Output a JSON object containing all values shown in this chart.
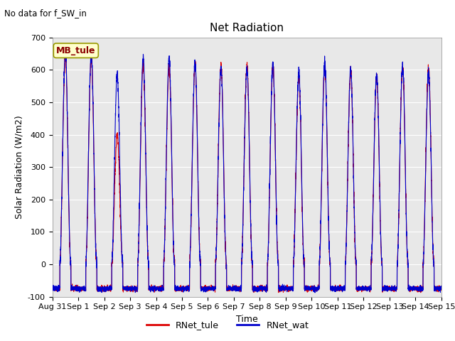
{
  "title": "Net Radiation",
  "top_left_text": "No data for f_SW_in",
  "ylabel": "Solar Radiation (W/m2)",
  "xlabel": "Time",
  "annotation_box": "MB_tule",
  "ylim": [
    -100,
    700
  ],
  "yticks": [
    -100,
    0,
    100,
    200,
    300,
    400,
    500,
    600,
    700
  ],
  "xtick_labels": [
    "Aug 31",
    "Sep 1",
    "Sep 2",
    "Sep 3",
    "Sep 4",
    "Sep 5",
    "Sep 6",
    "Sep 7",
    "Sep 8",
    "Sep 9",
    "Sep 10",
    "Sep 11",
    "Sep 12",
    "Sep 13",
    "Sep 14",
    "Sep 15"
  ],
  "color_tule": "#dd0000",
  "color_wat": "#0000cc",
  "legend_labels": [
    "RNet_tule",
    "RNet_wat"
  ],
  "background_color": "#e8e8e8",
  "fig_background": "#ffffff",
  "n_days": 15,
  "n_per_day": 288,
  "night_base": -75,
  "day_peaks_wat": [
    655,
    655,
    585,
    637,
    638,
    622,
    607,
    605,
    615,
    592,
    623,
    601,
    585,
    612,
    592
  ],
  "day_peaks_tule": [
    642,
    635,
    400,
    617,
    610,
    615,
    610,
    612,
    612,
    575,
    615,
    598,
    578,
    608,
    605
  ],
  "noise_scale": 8,
  "linewidth": 0.8,
  "title_fontsize": 11,
  "label_fontsize": 9,
  "tick_fontsize": 8
}
